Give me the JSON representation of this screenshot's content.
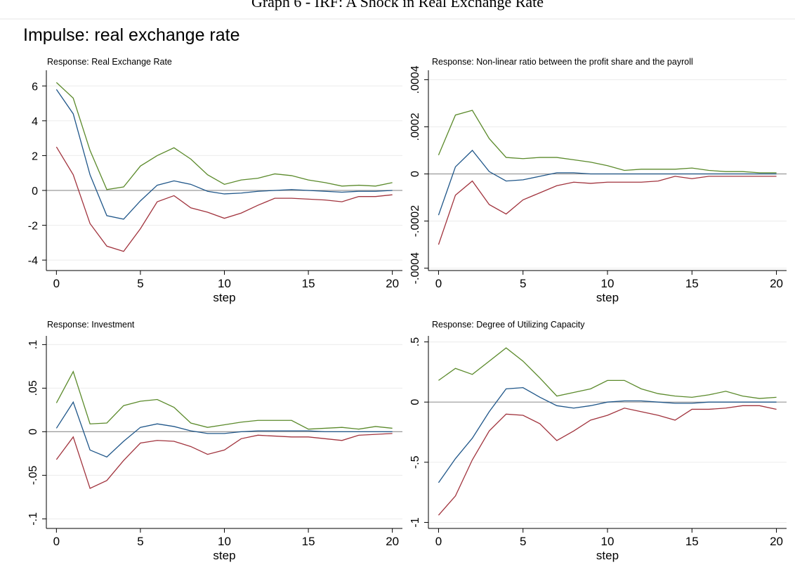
{
  "page_title": "Graph 6 - IRF: A Shock in Real Exchange Rate",
  "figure_title": "Impulse: real exchange rate",
  "chart_data": [
    {
      "type": "line",
      "title": "Response: Real Exchange Rate",
      "x_label": "step",
      "x": [
        0,
        1,
        2,
        3,
        4,
        5,
        6,
        7,
        8,
        9,
        10,
        11,
        12,
        13,
        14,
        15,
        16,
        17,
        18,
        19,
        20
      ],
      "xlim": [
        -0.6,
        20.6
      ],
      "xticks": [
        0,
        5,
        10,
        15,
        20
      ],
      "ylim": [
        -4.6,
        6.9
      ],
      "yticks": [
        -4,
        -2,
        0,
        2,
        4,
        6
      ],
      "ytick_labels_vertical": false,
      "grid": true,
      "yline": 0,
      "series": [
        {
          "color": "#5b8a2b",
          "values": [
            6.2,
            5.3,
            2.3,
            0.05,
            0.2,
            1.4,
            2.0,
            2.45,
            1.8,
            0.9,
            0.35,
            0.6,
            0.7,
            0.95,
            0.85,
            0.6,
            0.45,
            0.25,
            0.3,
            0.25,
            0.45
          ]
        },
        {
          "color": "#1f5689",
          "values": [
            5.8,
            4.4,
            0.9,
            -1.45,
            -1.65,
            -0.6,
            0.3,
            0.55,
            0.35,
            -0.05,
            -0.2,
            -0.15,
            -0.05,
            0.0,
            0.05,
            0.0,
            -0.05,
            -0.1,
            -0.05,
            -0.05,
            0.0
          ]
        },
        {
          "color": "#a1333d",
          "values": [
            2.5,
            0.9,
            -1.9,
            -3.2,
            -3.5,
            -2.2,
            -0.65,
            -0.3,
            -1.0,
            -1.25,
            -1.6,
            -1.3,
            -0.85,
            -0.45,
            -0.45,
            -0.5,
            -0.55,
            -0.65,
            -0.35,
            -0.35,
            -0.25
          ]
        }
      ]
    },
    {
      "type": "line",
      "title": "Response: Non-linear ratio between the profit share and the payroll",
      "x_label": "step",
      "x": [
        0,
        1,
        2,
        3,
        4,
        5,
        6,
        7,
        8,
        9,
        10,
        11,
        12,
        13,
        14,
        15,
        16,
        17,
        18,
        19,
        20
      ],
      "xlim": [
        -0.6,
        20.6
      ],
      "xticks": [
        0,
        5,
        10,
        15,
        20
      ],
      "ylim": [
        -0.00041,
        0.00044
      ],
      "yticks": [
        {
          "value": -0.0004,
          "label": "-.0004"
        },
        {
          "value": -0.0002,
          "label": "-.0002"
        },
        0,
        {
          "value": 0.0002,
          "label": ".0002"
        },
        {
          "value": 0.0004,
          "label": ".0004"
        }
      ],
      "ytick_labels_vertical": true,
      "grid": true,
      "yline": 0,
      "series": [
        {
          "color": "#5b8a2b",
          "values": [
            8e-05,
            0.00025,
            0.00027,
            0.00015,
            7e-05,
            6.5e-05,
            7e-05,
            7e-05,
            6e-05,
            5e-05,
            3.5e-05,
            1.5e-05,
            2e-05,
            2e-05,
            2e-05,
            2.5e-05,
            1.5e-05,
            1e-05,
            1e-05,
            5e-06,
            5e-06
          ]
        },
        {
          "color": "#1f5689",
          "values": [
            -0.000175,
            3e-05,
            0.0001,
            1e-05,
            -3e-05,
            -2.5e-05,
            -1e-05,
            5e-06,
            5e-06,
            0,
            0,
            0,
            0,
            0,
            0,
            0,
            0,
            0,
            0,
            0,
            0
          ]
        },
        {
          "color": "#a1333d",
          "values": [
            -0.0003,
            -9e-05,
            -3e-05,
            -0.00013,
            -0.00017,
            -0.00011,
            -8e-05,
            -5e-05,
            -3.5e-05,
            -4e-05,
            -3.5e-05,
            -3.5e-05,
            -3.5e-05,
            -3e-05,
            -1e-05,
            -2e-05,
            -1e-05,
            -1e-05,
            -1e-05,
            -1e-05,
            -1e-05
          ]
        }
      ]
    },
    {
      "type": "line",
      "title": "Response: Investment",
      "x_label": "step",
      "x": [
        0,
        1,
        2,
        3,
        4,
        5,
        6,
        7,
        8,
        9,
        10,
        11,
        12,
        13,
        14,
        15,
        16,
        17,
        18,
        19,
        20
      ],
      "xlim": [
        -0.6,
        20.6
      ],
      "xticks": [
        0,
        5,
        10,
        15,
        20
      ],
      "ylim": [
        -0.111,
        0.11
      ],
      "yticks": [
        {
          "value": -0.1,
          "label": "-.1"
        },
        {
          "value": -0.05,
          "label": "-.05"
        },
        0,
        {
          "value": 0.05,
          "label": ".05"
        },
        {
          "value": 0.1,
          "label": ".1"
        }
      ],
      "ytick_labels_vertical": true,
      "grid": true,
      "yline": 0,
      "series": [
        {
          "color": "#5b8a2b",
          "values": [
            0.033,
            0.069,
            0.009,
            0.01,
            0.03,
            0.035,
            0.037,
            0.028,
            0.01,
            0.005,
            0.008,
            0.011,
            0.013,
            0.013,
            0.013,
            0.003,
            0.004,
            0.005,
            0.003,
            0.006,
            0.004
          ]
        },
        {
          "color": "#1f5689",
          "values": [
            0.004,
            0.034,
            -0.021,
            -0.029,
            -0.011,
            0.005,
            0.009,
            0.006,
            0.001,
            -0.002,
            -0.002,
            0,
            0.001,
            0.001,
            0.001,
            0.001,
            0,
            0,
            0,
            0,
            0
          ]
        },
        {
          "color": "#a1333d",
          "values": [
            -0.032,
            -0.006,
            -0.065,
            -0.056,
            -0.033,
            -0.013,
            -0.01,
            -0.011,
            -0.017,
            -0.026,
            -0.021,
            -0.008,
            -0.004,
            -0.005,
            -0.006,
            -0.006,
            -0.008,
            -0.01,
            -0.004,
            -0.003,
            -0.002
          ]
        }
      ]
    },
    {
      "type": "line",
      "title": "Response: Degree of Utilizing Capacity",
      "x_label": "step",
      "x": [
        0,
        1,
        2,
        3,
        4,
        5,
        6,
        7,
        8,
        9,
        10,
        11,
        12,
        13,
        14,
        15,
        16,
        17,
        18,
        19,
        20
      ],
      "xlim": [
        -0.6,
        20.6
      ],
      "xticks": [
        0,
        5,
        10,
        15,
        20
      ],
      "ylim": [
        -1.05,
        0.55
      ],
      "yticks": [
        -1,
        {
          "value": -0.5,
          "label": "-.5"
        },
        0,
        {
          "value": 0.5,
          "label": ".5"
        }
      ],
      "ytick_labels_vertical": true,
      "grid": true,
      "yline": 0,
      "series": [
        {
          "color": "#5b8a2b",
          "values": [
            0.18,
            0.28,
            0.23,
            0.34,
            0.45,
            0.34,
            0.2,
            0.05,
            0.08,
            0.11,
            0.18,
            0.18,
            0.11,
            0.07,
            0.05,
            0.04,
            0.06,
            0.09,
            0.05,
            0.03,
            0.04
          ]
        },
        {
          "color": "#1f5689",
          "values": [
            -0.67,
            -0.47,
            -0.3,
            -0.08,
            0.11,
            0.12,
            0.04,
            -0.03,
            -0.05,
            -0.03,
            0,
            0.01,
            0.01,
            0,
            -0.01,
            -0.01,
            0,
            0,
            0,
            0,
            0
          ]
        },
        {
          "color": "#a1333d",
          "values": [
            -0.94,
            -0.78,
            -0.48,
            -0.24,
            -0.1,
            -0.11,
            -0.18,
            -0.32,
            -0.24,
            -0.15,
            -0.11,
            -0.05,
            -0.08,
            -0.11,
            -0.15,
            -0.06,
            -0.06,
            -0.05,
            -0.03,
            -0.03,
            -0.06
          ]
        }
      ]
    }
  ]
}
